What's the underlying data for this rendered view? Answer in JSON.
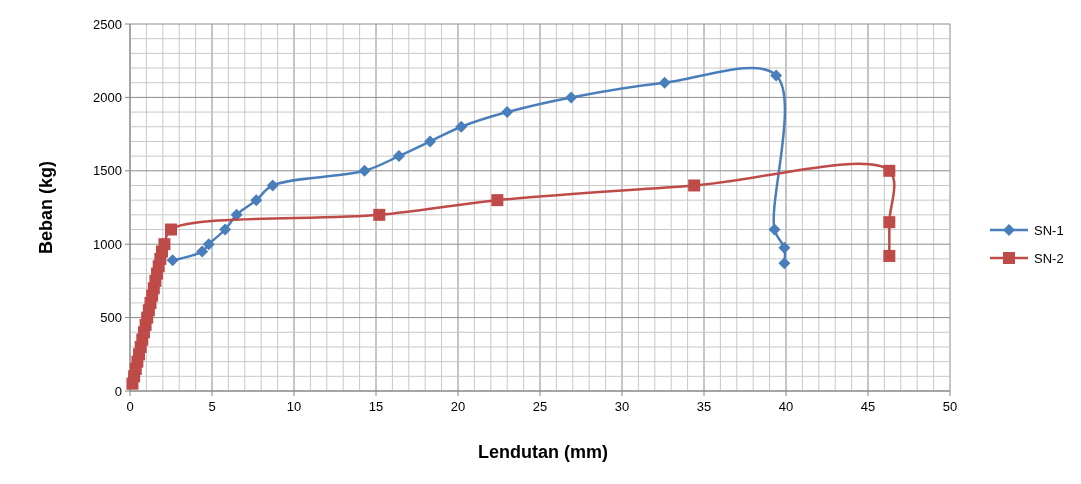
{
  "chart_data": {
    "type": "line",
    "xlabel": "Lendutan  (mm)",
    "ylabel": "Beban  (kg)",
    "xlim": [
      0,
      50
    ],
    "ylim": [
      0,
      2500
    ],
    "xticks": [
      0,
      {
        "value": 1,
        "label": null
      },
      {
        "value": 2,
        "label": null
      },
      {
        "value": 3,
        "label": null
      },
      {
        "value": 4,
        "label": null
      },
      5,
      {
        "value": 6,
        "label": null
      },
      {
        "value": 7,
        "label": null
      },
      {
        "value": 8,
        "label": null
      },
      {
        "value": 9,
        "label": null
      },
      10,
      {
        "value": 11,
        "label": null
      },
      {
        "value": 12,
        "label": null
      },
      {
        "value": 13,
        "label": null
      },
      {
        "value": 14,
        "label": null
      },
      15,
      {
        "value": 16,
        "label": null
      },
      {
        "value": 17,
        "label": null
      },
      {
        "value": 18,
        "label": null
      },
      {
        "value": 19,
        "label": null
      },
      20,
      {
        "value": 21,
        "label": null
      },
      {
        "value": 22,
        "label": null
      },
      {
        "value": 23,
        "label": null
      },
      {
        "value": 24,
        "label": null
      },
      25,
      {
        "value": 26,
        "label": null
      },
      {
        "value": 27,
        "label": null
      },
      {
        "value": 28,
        "label": null
      },
      {
        "value": 29,
        "label": null
      },
      30,
      {
        "value": 31,
        "label": null
      },
      {
        "value": 32,
        "label": null
      },
      {
        "value": 33,
        "label": null
      },
      {
        "value": 34,
        "label": null
      },
      35,
      {
        "value": 36,
        "label": null
      },
      {
        "value": 37,
        "label": null
      },
      {
        "value": 38,
        "label": null
      },
      {
        "value": 39,
        "label": null
      },
      40,
      {
        "value": 41,
        "label": null
      },
      {
        "value": 42,
        "label": null
      },
      {
        "value": 43,
        "label": null
      },
      {
        "value": 44,
        "label": null
      },
      45,
      {
        "value": 46,
        "label": null
      },
      {
        "value": 47,
        "label": null
      },
      {
        "value": 48,
        "label": null
      },
      {
        "value": 49,
        "label": null
      },
      50
    ],
    "yticks": [
      0,
      {
        "value": 100,
        "label": null
      },
      {
        "value": 200,
        "label": null
      },
      {
        "value": 300,
        "label": null
      },
      {
        "value": 400,
        "label": null
      },
      500,
      {
        "value": 600,
        "label": null
      },
      {
        "value": 700,
        "label": null
      },
      {
        "value": 800,
        "label": null
      },
      {
        "value": 900,
        "label": null
      },
      1000,
      {
        "value": 1100,
        "label": null
      },
      {
        "value": 1200,
        "label": null
      },
      {
        "value": 1300,
        "label": null
      },
      {
        "value": 1400,
        "label": null
      },
      1500,
      {
        "value": 1600,
        "label": null
      },
      {
        "value": 1700,
        "label": null
      },
      {
        "value": 1800,
        "label": null
      },
      {
        "value": 1900,
        "label": null
      },
      2000,
      {
        "value": 2100,
        "label": null
      },
      {
        "value": 2200,
        "label": null
      },
      {
        "value": 2300,
        "label": null
      },
      {
        "value": 2400,
        "label": null
      },
      2500
    ],
    "grid": true,
    "legend": "right",
    "line_style": "solid",
    "series": [
      {
        "name": "SN-1",
        "color": "#4a7ebb",
        "marker": "diamond",
        "x": [
          2.6,
          4.4,
          4.8,
          5.8,
          6.5,
          7.7,
          8.7,
          14.3,
          16.4,
          18.3,
          20.2,
          23.0,
          26.9,
          32.6,
          39.4,
          39.3,
          39.9,
          39.9
        ],
        "values": [
          890,
          950,
          1000,
          1100,
          1200,
          1300,
          1400,
          1500,
          1600,
          1700,
          1800,
          1900,
          2000,
          2100,
          2150,
          1100,
          975,
          870
        ]
      },
      {
        "name": "SN-2",
        "color": "#be4b48",
        "marker": "square",
        "x": [
          0.15,
          0.25,
          0.35,
          0.45,
          0.55,
          0.65,
          0.75,
          0.85,
          0.95,
          1.05,
          1.15,
          1.25,
          1.35,
          1.45,
          1.55,
          1.65,
          1.75,
          1.85,
          1.95,
          2.1,
          2.5,
          15.2,
          22.4,
          34.4,
          46.3,
          46.3,
          46.3
        ],
        "values": [
          50,
          100,
          150,
          200,
          250,
          300,
          350,
          400,
          450,
          500,
          550,
          600,
          650,
          700,
          750,
          800,
          850,
          900,
          950,
          1000,
          1100,
          1200,
          1300,
          1400,
          1500,
          1150,
          920
        ]
      }
    ]
  }
}
